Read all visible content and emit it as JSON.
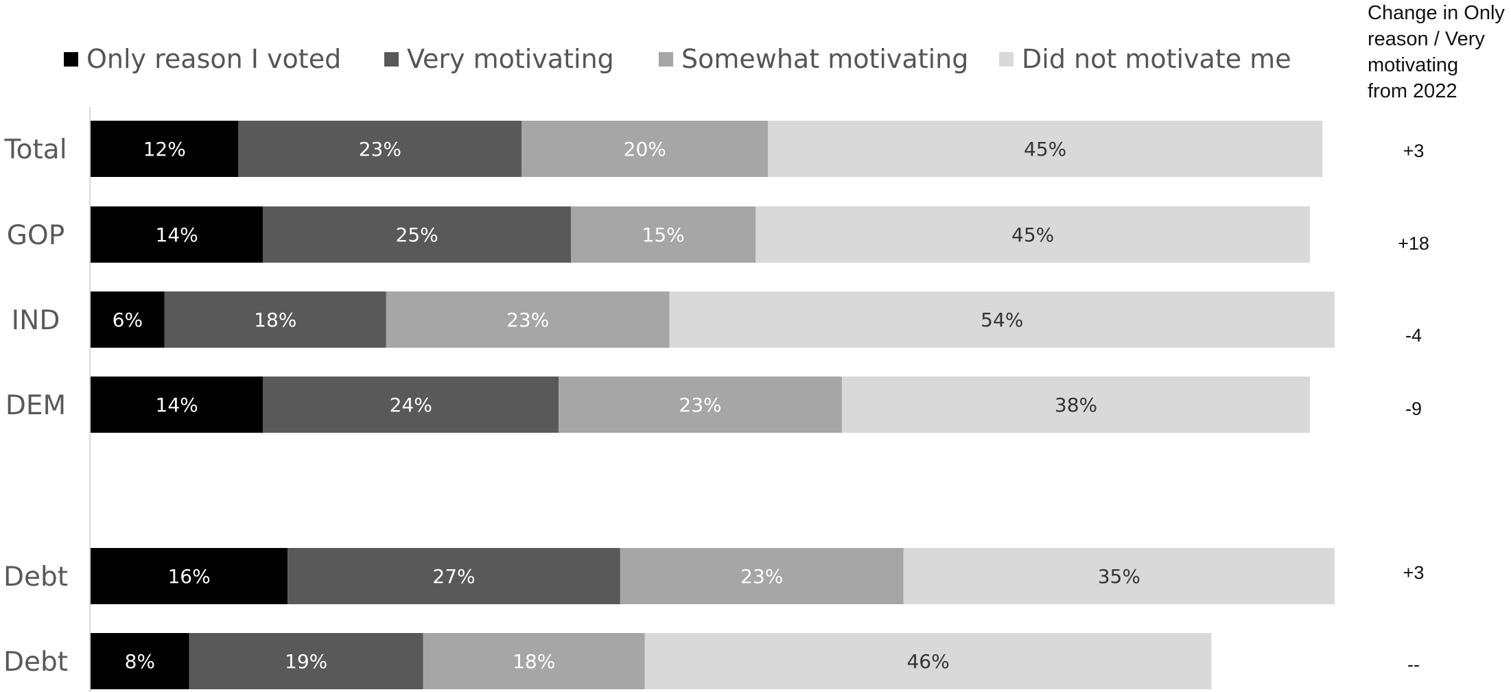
{
  "chart_data": {
    "type": "bar",
    "orientation": "horizontal",
    "stacked": true,
    "categories": [
      "Total",
      "GOP",
      "IND",
      "DEM",
      "Debt",
      "Debt"
    ],
    "series": [
      {
        "name": "Only reason I voted",
        "color": "#000000",
        "label_color": "#ffffff",
        "values": [
          12,
          14,
          6,
          14,
          16,
          8
        ]
      },
      {
        "name": "Very motivating",
        "color": "#595959",
        "label_color": "#ffffff",
        "values": [
          23,
          25,
          18,
          24,
          27,
          19
        ]
      },
      {
        "name": "Somewhat motivating",
        "color": "#a6a6a6",
        "label_color": "#ffffff",
        "values": [
          20,
          15,
          23,
          23,
          23,
          18
        ]
      },
      {
        "name": "Did not motivate me",
        "color": "#d9d9d9",
        "label_color": "#333333",
        "values": [
          45,
          45,
          54,
          38,
          35,
          46
        ]
      }
    ],
    "data_labels": [
      [
        "12%",
        "14%",
        "6%",
        "14%",
        "16%",
        "8%"
      ],
      [
        "23%",
        "25%",
        "18%",
        "24%",
        "27%",
        "19%"
      ],
      [
        "20%",
        "15%",
        "23%",
        "23%",
        "23%",
        "18%"
      ],
      [
        "45%",
        "45%",
        "54%",
        "38%",
        "35%",
        "46%"
      ]
    ],
    "legend_position": "top",
    "grid": false
  },
  "change_column": {
    "header_lines": [
      "Change in Only",
      "reason / Very",
      "motivating",
      "from 2022"
    ],
    "values": [
      "+3",
      "+18",
      "-4",
      "-9",
      "+3",
      "--"
    ]
  }
}
